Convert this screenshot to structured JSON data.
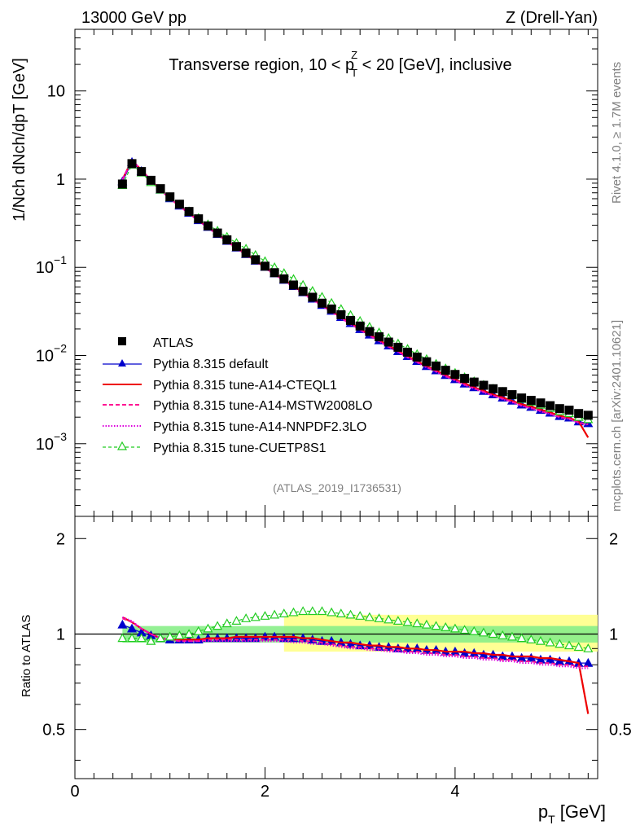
{
  "header": {
    "left": "13000 GeV pp",
    "right": "Z (Drell-Yan)"
  },
  "side_labels": {
    "rivet": "Rivet 4.1.0, ≥ 1.7M events",
    "mcplots": "mcplots.cern.ch [arXiv:2401.10621]"
  },
  "chart_data": {
    "type": "scatter",
    "title": "Transverse region, 10 < pTZ < 20 [GeV], inclusive",
    "title_parts": {
      "pre": "Transverse region, 10 < p",
      "sup": "Z",
      "sub": "T",
      "post": " < 20 [GeV], inclusive"
    },
    "analysis_id": "(ATLAS_2019_I1736531)",
    "xlabel": "pT [GeV]",
    "xlabel_parts": {
      "main": "p",
      "sub": "T",
      "unit": " [GeV]"
    },
    "ylabel": "1/Nch dNch/dpT [GeV]",
    "ratio_ylabel": "Ratio to ATLAS",
    "xlim": [
      0,
      5.5
    ],
    "ylim": [
      0.00015,
      50
    ],
    "ratio_ylim": [
      0.35,
      2.35
    ],
    "x_ticks": [
      "0",
      "2",
      "4"
    ],
    "y_ticks": [
      "10",
      "1",
      "10^-1",
      "10^-2",
      "10^-3"
    ],
    "ratio_ticks": [
      "2",
      "1",
      "0.5"
    ],
    "x": [
      0.5,
      0.6,
      0.7,
      0.8,
      0.9,
      1.0,
      1.1,
      1.2,
      1.3,
      1.4,
      1.5,
      1.6,
      1.7,
      1.8,
      1.9,
      2.0,
      2.1,
      2.2,
      2.3,
      2.4,
      2.5,
      2.6,
      2.7,
      2.8,
      2.9,
      3.0,
      3.1,
      3.2,
      3.3,
      3.4,
      3.5,
      3.6,
      3.7,
      3.8,
      3.9,
      4.0,
      4.1,
      4.2,
      4.3,
      4.4,
      4.5,
      4.6,
      4.7,
      4.8,
      4.9,
      5.0,
      5.1,
      5.2,
      5.3,
      5.4
    ],
    "data": [
      0.88,
      1.5,
      1.22,
      0.97,
      0.78,
      0.63,
      0.52,
      0.43,
      0.355,
      0.295,
      0.245,
      0.205,
      0.172,
      0.145,
      0.122,
      0.103,
      0.087,
      0.074,
      0.063,
      0.0535,
      0.0458,
      0.0392,
      0.0337,
      0.029,
      0.025,
      0.0216,
      0.0187,
      0.0163,
      0.0142,
      0.0124,
      0.0109,
      0.0096,
      0.0085,
      0.0076,
      0.0068,
      0.0061,
      0.0055,
      0.005,
      0.0046,
      0.0042,
      0.0039,
      0.0036,
      0.0033,
      0.0031,
      0.0029,
      0.0027,
      0.0025,
      0.0024,
      0.0022,
      0.0021
    ],
    "band_ranges": {
      "inner_x": [
        0.5,
        5.5
      ],
      "outer_x": [
        2.2,
        5.5
      ]
    },
    "series": [
      {
        "name": "Pythia 8.315 default",
        "color": "#0000cc",
        "style": "solid-triangle",
        "ratio": [
          1.07,
          1.04,
          1.01,
          0.99,
          0.97,
          0.96,
          0.96,
          0.96,
          0.96,
          0.97,
          0.97,
          0.97,
          0.97,
          0.97,
          0.97,
          0.98,
          0.98,
          0.97,
          0.97,
          0.97,
          0.96,
          0.95,
          0.95,
          0.94,
          0.93,
          0.92,
          0.92,
          0.91,
          0.91,
          0.9,
          0.9,
          0.9,
          0.89,
          0.89,
          0.88,
          0.88,
          0.87,
          0.87,
          0.86,
          0.86,
          0.85,
          0.85,
          0.84,
          0.84,
          0.83,
          0.83,
          0.82,
          0.82,
          0.81,
          0.81
        ]
      },
      {
        "name": "Pythia 8.315 tune-A14-CTEQL1",
        "color": "#ee0000",
        "style": "solid",
        "ratio": [
          1.13,
          1.09,
          1.04,
          1.0,
          0.97,
          0.96,
          0.96,
          0.96,
          0.96,
          0.97,
          0.97,
          0.97,
          0.98,
          0.98,
          0.98,
          0.98,
          0.98,
          0.98,
          0.98,
          0.97,
          0.97,
          0.96,
          0.95,
          0.94,
          0.94,
          0.93,
          0.92,
          0.92,
          0.91,
          0.91,
          0.9,
          0.9,
          0.89,
          0.89,
          0.88,
          0.88,
          0.88,
          0.87,
          0.87,
          0.86,
          0.86,
          0.85,
          0.85,
          0.85,
          0.84,
          0.84,
          0.83,
          0.82,
          0.81,
          0.56
        ]
      },
      {
        "name": "Pythia 8.315 tune-A14-MSTW2008LO",
        "color": "#ff1493",
        "style": "dashed",
        "ratio": [
          1.12,
          1.09,
          1.04,
          1.0,
          0.97,
          0.96,
          0.95,
          0.95,
          0.95,
          0.96,
          0.96,
          0.96,
          0.96,
          0.96,
          0.96,
          0.96,
          0.96,
          0.96,
          0.96,
          0.95,
          0.95,
          0.94,
          0.93,
          0.92,
          0.91,
          0.91,
          0.9,
          0.9,
          0.89,
          0.89,
          0.88,
          0.88,
          0.87,
          0.87,
          0.86,
          0.86,
          0.85,
          0.85,
          0.84,
          0.84,
          0.83,
          0.83,
          0.82,
          0.82,
          0.81,
          0.81,
          0.8,
          0.8,
          0.79,
          0.79
        ]
      },
      {
        "name": "Pythia 8.315 tune-A14-NNPDF2.3LO",
        "color": "#dd00dd",
        "style": "dotted",
        "ratio": [
          1.13,
          1.1,
          1.04,
          1.0,
          0.97,
          0.96,
          0.95,
          0.95,
          0.95,
          0.95,
          0.95,
          0.95,
          0.95,
          0.95,
          0.95,
          0.95,
          0.95,
          0.95,
          0.94,
          0.94,
          0.93,
          0.93,
          0.92,
          0.91,
          0.9,
          0.9,
          0.89,
          0.89,
          0.88,
          0.88,
          0.87,
          0.87,
          0.86,
          0.86,
          0.85,
          0.85,
          0.84,
          0.84,
          0.83,
          0.83,
          0.82,
          0.82,
          0.81,
          0.81,
          0.8,
          0.8,
          0.79,
          0.79,
          0.78,
          0.78
        ]
      },
      {
        "name": "Pythia 8.315 tune-CUETP8S1",
        "color": "#22cc22",
        "style": "dashed-open-triangle",
        "ratio": [
          0.97,
          0.97,
          0.97,
          0.95,
          0.97,
          0.98,
          0.99,
          1.0,
          1.02,
          1.04,
          1.06,
          1.08,
          1.1,
          1.12,
          1.13,
          1.14,
          1.15,
          1.16,
          1.17,
          1.18,
          1.18,
          1.18,
          1.17,
          1.16,
          1.15,
          1.14,
          1.13,
          1.12,
          1.11,
          1.1,
          1.09,
          1.08,
          1.07,
          1.06,
          1.05,
          1.04,
          1.03,
          1.02,
          1.01,
          1.0,
          0.99,
          0.98,
          0.97,
          0.96,
          0.95,
          0.94,
          0.93,
          0.92,
          0.91,
          0.9
        ]
      }
    ]
  }
}
